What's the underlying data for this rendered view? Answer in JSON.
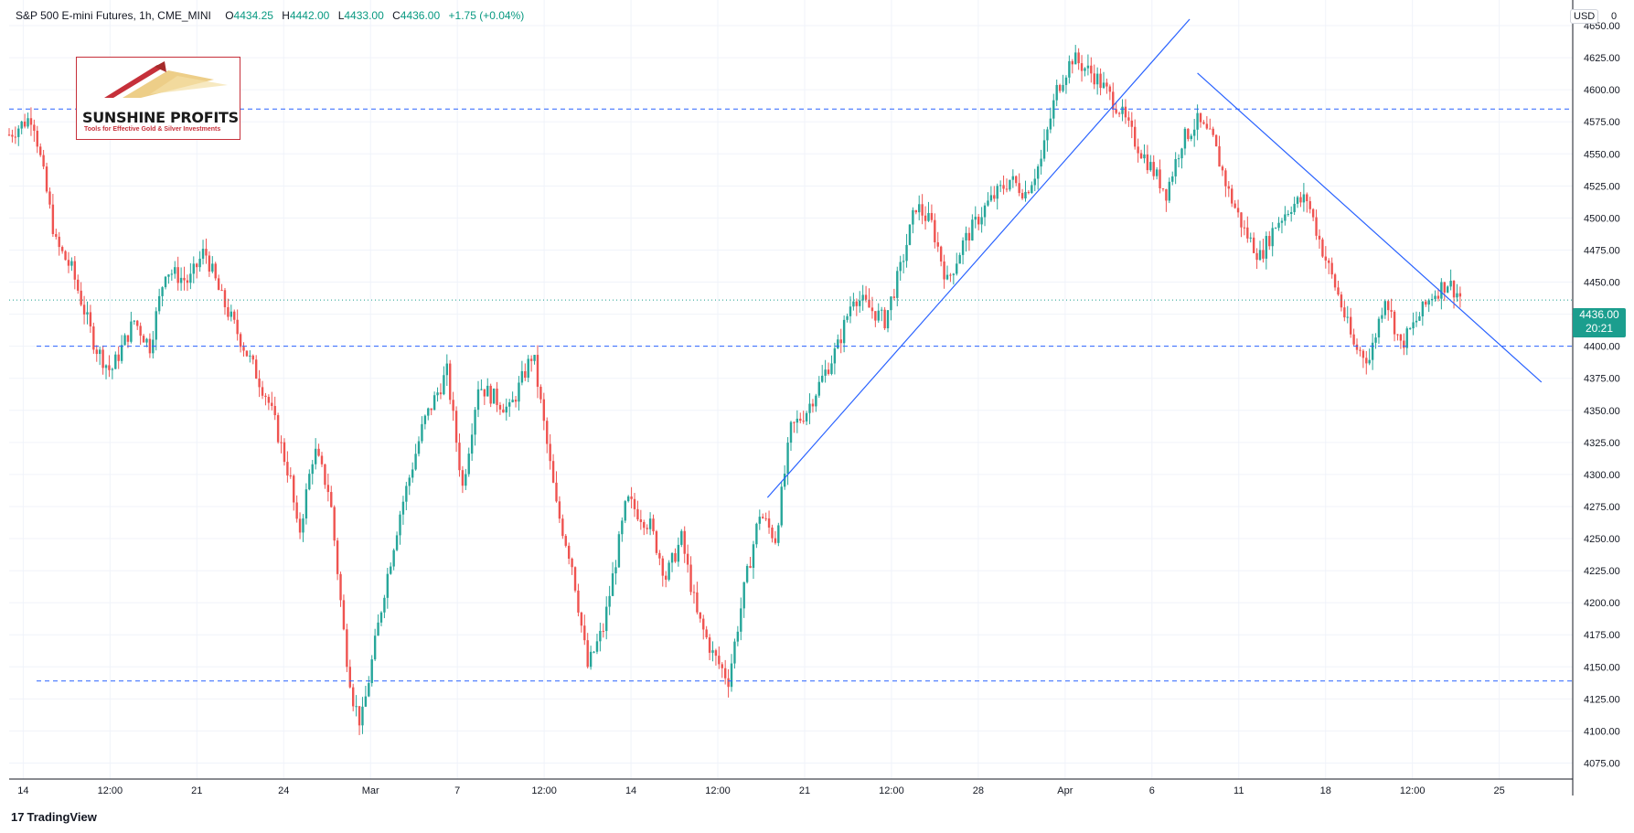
{
  "header": {
    "symbol": "S&P 500 E-mini Futures, 1h, CME_MINI",
    "open_label": "O",
    "open": "4434.25",
    "high_label": "H",
    "high": "4442.00",
    "low_label": "L",
    "low": "4433.00",
    "close_label": "C",
    "close": "4436.00",
    "change": "+1.75 (+0.04%)"
  },
  "logo": {
    "name": "SUNSHINE PROFITS",
    "tagline": "Tools for Effective Gold & Silver Investments"
  },
  "currency": "USD",
  "scale_corner": "0",
  "last_price": {
    "price": "4436.00",
    "countdown": "20:21"
  },
  "footer": {
    "brand_mark": "17",
    "brand": "TradingView"
  },
  "colors": {
    "up": "#26a69a",
    "down": "#ef5350",
    "trendline": "#2962ff",
    "last_price": "#1b9e8e"
  },
  "chart_data": {
    "type": "candlestick",
    "title": "S&P 500 E-mini Futures, 1h, CME_MINI",
    "ylim": [
      4062.5,
      4670
    ],
    "y_ticks": [
      4075,
      4100,
      4125,
      4150,
      4175,
      4200,
      4225,
      4250,
      4275,
      4300,
      4325,
      4350,
      4375,
      4400,
      4425,
      4450,
      4475,
      4500,
      4525,
      4550,
      4575,
      4600,
      4625,
      4650
    ],
    "x_tick_labels": [
      "14",
      "12:00",
      "21",
      "24",
      "Mar",
      "7",
      "12:00",
      "14",
      "12:00",
      "21",
      "12:00",
      "28",
      "Apr",
      "6",
      "11",
      "18",
      "12:00",
      "25"
    ],
    "grid": true,
    "price_path_anchors": [
      [
        0,
        4565
      ],
      [
        1.5,
        4580
      ],
      [
        3,
        4480
      ],
      [
        4,
        4460
      ],
      [
        5.5,
        4400
      ],
      [
        6.5,
        4380
      ],
      [
        8,
        4420
      ],
      [
        9,
        4400
      ],
      [
        10,
        4460
      ],
      [
        11.5,
        4450
      ],
      [
        12.5,
        4475
      ],
      [
        13.5,
        4440
      ],
      [
        15,
        4400
      ],
      [
        16.5,
        4360
      ],
      [
        17,
        4340
      ],
      [
        18,
        4295
      ],
      [
        18.5,
        4250
      ],
      [
        19.5,
        4320
      ],
      [
        20.5,
        4285
      ],
      [
        21.5,
        4165
      ],
      [
        22,
        4125
      ],
      [
        22.5,
        4105
      ],
      [
        24,
        4210
      ],
      [
        25,
        4270
      ],
      [
        26.5,
        4340
      ],
      [
        28,
        4380
      ],
      [
        29,
        4290
      ],
      [
        30,
        4370
      ],
      [
        32,
        4350
      ],
      [
        33.5,
        4395
      ],
      [
        35,
        4275
      ],
      [
        36,
        4230
      ],
      [
        37,
        4150
      ],
      [
        38,
        4180
      ],
      [
        39.5,
        4280
      ],
      [
        41,
        4260
      ],
      [
        42,
        4220
      ],
      [
        43,
        4250
      ],
      [
        44,
        4190
      ],
      [
        45,
        4160
      ],
      [
        46,
        4140
      ],
      [
        47,
        4210
      ],
      [
        48,
        4270
      ],
      [
        49,
        4250
      ],
      [
        50,
        4335
      ],
      [
        51,
        4350
      ],
      [
        52,
        4375
      ],
      [
        53,
        4400
      ],
      [
        54,
        4440
      ],
      [
        56,
        4420
      ],
      [
        57,
        4460
      ],
      [
        58,
        4510
      ],
      [
        59,
        4495
      ],
      [
        60,
        4450
      ],
      [
        61,
        4480
      ],
      [
        62.5,
        4510
      ],
      [
        64,
        4530
      ],
      [
        65,
        4520
      ],
      [
        66,
        4545
      ],
      [
        67,
        4600
      ],
      [
        68,
        4625
      ],
      [
        69.5,
        4610
      ],
      [
        71,
        4585
      ],
      [
        72,
        4560
      ],
      [
        73,
        4540
      ],
      [
        74,
        4520
      ],
      [
        75,
        4560
      ],
      [
        76,
        4575
      ],
      [
        77,
        4560
      ],
      [
        78,
        4520
      ],
      [
        79,
        4490
      ],
      [
        80,
        4470
      ],
      [
        81,
        4495
      ],
      [
        82,
        4510
      ],
      [
        83,
        4515
      ],
      [
        84,
        4475
      ],
      [
        85,
        4440
      ],
      [
        86,
        4400
      ],
      [
        87,
        4390
      ],
      [
        88,
        4440
      ],
      [
        89,
        4400
      ],
      [
        90,
        4420
      ],
      [
        91,
        4440
      ],
      [
        92,
        4450
      ],
      [
        93,
        4436
      ]
    ],
    "annotations": [
      {
        "type": "hline",
        "value": 4585,
        "style": "dashed"
      },
      {
        "type": "hline",
        "value": 4400,
        "style": "dashed"
      },
      {
        "type": "hline",
        "value": 4139,
        "style": "dashed"
      },
      {
        "type": "hline",
        "value": 4436,
        "style": "dotted"
      },
      {
        "type": "trendline",
        "from": [
          48.5,
          4282
        ],
        "to": [
          75.5,
          4655
        ]
      },
      {
        "type": "trendline",
        "from": [
          76,
          4613
        ],
        "to": [
          98,
          4372
        ]
      }
    ],
    "last_price": 4436.0
  }
}
